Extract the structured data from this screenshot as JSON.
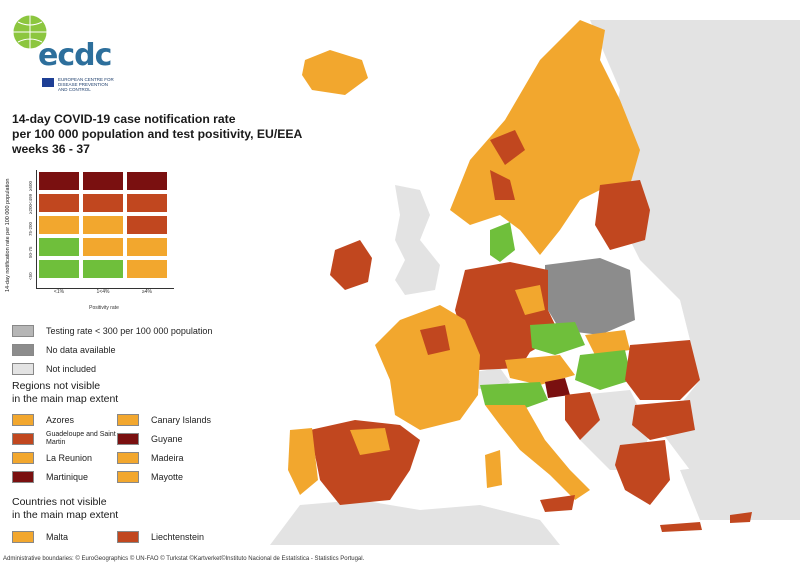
{
  "logo": {
    "text": "ecdc",
    "subtitle": "EUROPEAN CENTRE FOR DISEASE PREVENTION AND CONTROL"
  },
  "title": {
    "line1": "14-day COVID-19 case notification rate",
    "line2": "per 100 000 population and test positivity, EU/EEA",
    "line3": "weeks 36 - 37"
  },
  "matrix": {
    "y_axis_label": "14-day notification rate per 100 000 population",
    "x_axis_label": "Positivity rate",
    "x_ticks": [
      "<1%",
      "1<4%",
      "≥4%"
    ],
    "y_ticks": [
      "≥500",
      "≥200<499",
      "75-200",
      "50-75",
      "<50"
    ],
    "colors": {
      "green": "#6fbf3b",
      "orange": "#f2a72e",
      "dark_orange": "#c1471f",
      "dark_red": "#7a1010",
      "grey_testing": "#b6b6b6",
      "grey_nodata": "#8c8c8c",
      "light_grey": "#e3e3e3"
    },
    "grid": [
      [
        "dark_red",
        "dark_red",
        "dark_red"
      ],
      [
        "dark_orange",
        "dark_orange",
        "dark_orange"
      ],
      [
        "orange",
        "orange",
        "dark_orange"
      ],
      [
        "green",
        "orange",
        "orange"
      ],
      [
        "green",
        "green",
        "orange"
      ]
    ]
  },
  "legend": {
    "items": [
      {
        "label": "Testing rate < 300 per 100 000 population",
        "color": "#b6b6b6"
      },
      {
        "label": "No data available",
        "color": "#8c8c8c"
      },
      {
        "label": "Not included",
        "color": "#e3e3e3"
      }
    ],
    "regions_heading_line1": "Regions not visible",
    "regions_heading_line2": "in the main map extent",
    "regions": [
      {
        "label": "Azores",
        "color": "#f2a72e"
      },
      {
        "label": "Canary Islands",
        "color": "#f2a72e"
      },
      {
        "label": "Guadeloupe and Saint Martin",
        "color": "#c1471f"
      },
      {
        "label": "Guyane",
        "color": "#7a1010"
      },
      {
        "label": "La Reunion",
        "color": "#f2a72e"
      },
      {
        "label": "Madeira",
        "color": "#f2a72e"
      },
      {
        "label": "Martinique",
        "color": "#7a1010"
      },
      {
        "label": "Mayotte",
        "color": "#f2a72e"
      }
    ],
    "countries_heading_line1": "Countries not visible",
    "countries_heading_line2": "in the main map extent",
    "countries": [
      {
        "label": "Malta",
        "color": "#f2a72e"
      },
      {
        "label": "Liechtenstein",
        "color": "#c1471f"
      }
    ]
  },
  "footer": {
    "line1": "Administrative boundaries: © EuroGeographics © UN-FAO © Turkstat ©Kartverket©Instituto Nacional de Estatística - Statistics Portugal."
  }
}
